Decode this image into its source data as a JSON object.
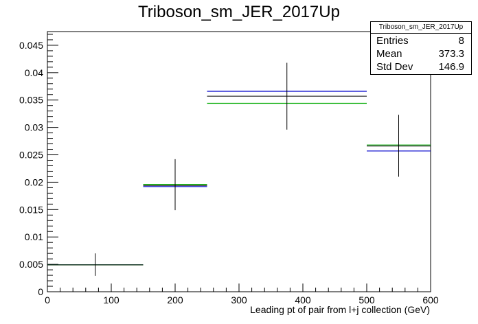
{
  "chart_data": {
    "type": "histogram",
    "title": "Triboson_sm_JER_2017Up",
    "xlabel": "Leading pt of pair from l+j collection (GeV)",
    "ylabel": "",
    "xlim": [
      0,
      600
    ],
    "ylim": [
      0,
      0.0475
    ],
    "x_ticks": [
      0,
      100,
      200,
      300,
      400,
      500,
      600
    ],
    "y_ticks": [
      0,
      0.005,
      0.01,
      0.015,
      0.02,
      0.025,
      0.03,
      0.035,
      0.04,
      0.045
    ],
    "y_tick_labels": [
      "0",
      "0.005",
      "0.01",
      "0.015",
      "0.02",
      "0.025",
      "0.03",
      "0.035",
      "0.04",
      "0.045"
    ],
    "bins": [
      {
        "xlow": 0,
        "xhigh": 150,
        "center": 75,
        "value": 0.0049,
        "err_low": 0.0029,
        "err_high": 0.007
      },
      {
        "xlow": 150,
        "xhigh": 250,
        "center": 200,
        "value": 0.0194,
        "err_low": 0.0149,
        "err_high": 0.0242
      },
      {
        "xlow": 250,
        "xhigh": 500,
        "center": 375,
        "value": 0.0357,
        "err_low": 0.0296,
        "err_high": 0.0418
      },
      {
        "xlow": 500,
        "xhigh": 600,
        "center": 550,
        "value": 0.0266,
        "err_low": 0.021,
        "err_high": 0.0323
      }
    ],
    "series": [
      {
        "style": "data_with_errors",
        "color": "#000000",
        "values": [
          0.0049,
          0.0194,
          0.0357,
          0.0266
        ]
      },
      {
        "style": "hist_line",
        "color": "#0000cc",
        "values": [
          0.0049,
          0.0192,
          0.0366,
          0.0257
        ]
      },
      {
        "style": "hist_line",
        "color": "#00aa00",
        "values": [
          0.0049,
          0.0196,
          0.0344,
          0.0268
        ]
      }
    ],
    "stats": {
      "title": "Triboson_sm_JER_2017Up",
      "entries_label": "Entries",
      "entries": "8",
      "mean_label": "Mean",
      "mean": "373.3",
      "stddev_label": "Std Dev",
      "stddev": "146.9"
    }
  }
}
